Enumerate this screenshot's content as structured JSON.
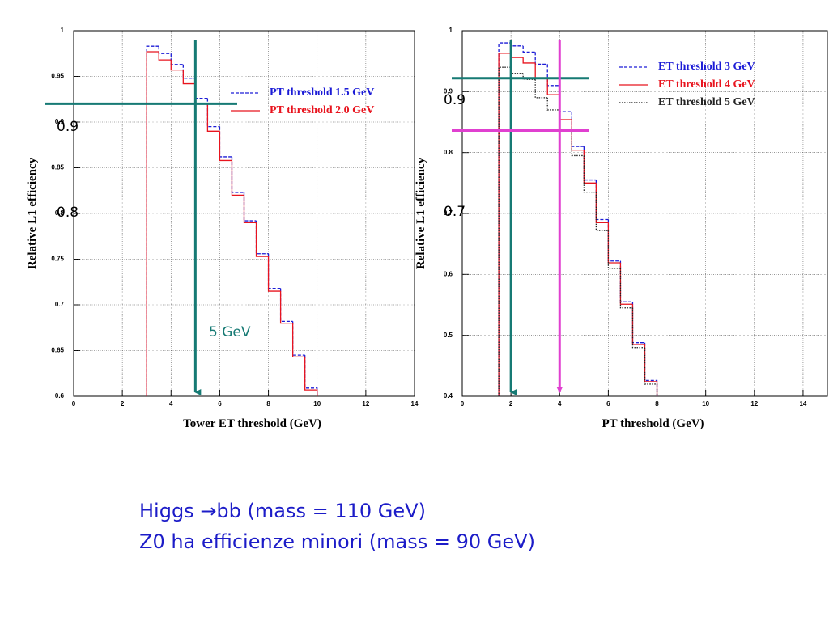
{
  "chart_data": [
    {
      "type": "histogram",
      "x_label": "Tower ET threshold (GeV)",
      "y_label": "Relative L1 efficiency",
      "bins": [
        3,
        3.5,
        4,
        4.5,
        5,
        5.5,
        6,
        6.5,
        7,
        7.5,
        8,
        8.5,
        9,
        9.5,
        10
      ],
      "series": [
        {
          "name": "PT threshold 1.5 GeV",
          "color": "#1c1cd6",
          "style": "dashed",
          "values": [
            0.983,
            0.975,
            0.963,
            0.948,
            0.926,
            0.895,
            0.862,
            0.823,
            0.792,
            0.756,
            0.718,
            0.682,
            0.645,
            0.609
          ]
        },
        {
          "name": "PT threshold 2.0 GeV",
          "color": "#e8141e",
          "style": "solid",
          "values": [
            0.977,
            0.968,
            0.957,
            0.942,
            0.92,
            0.89,
            0.858,
            0.82,
            0.79,
            0.753,
            0.715,
            0.68,
            0.643,
            0.607
          ]
        }
      ],
      "xlim": [
        0,
        14
      ],
      "xticks": [
        0,
        2,
        4,
        6,
        8,
        10,
        12,
        14
      ],
      "ylim": [
        0.6,
        1
      ],
      "yticks": [
        0.6,
        0.65,
        0.7,
        0.75,
        0.8,
        0.85,
        0.9,
        0.95,
        1
      ],
      "grid": true,
      "legend": "upper right",
      "reference_lines": [
        {
          "axis": "y",
          "value": 0.92,
          "color": "#167a74"
        },
        {
          "axis": "x",
          "value": 5,
          "color": "#167a74"
        }
      ],
      "annotations": [
        "0.9",
        "0.8",
        "5 GeV"
      ]
    },
    {
      "type": "histogram",
      "x_label": "PT threshold (GeV)",
      "y_label": "Relative L1 efficiency",
      "bins": [
        1.5,
        2,
        2.5,
        3,
        3.5,
        4,
        4.5,
        5,
        5.5,
        6,
        6.5,
        7,
        7.5,
        8
      ],
      "series": [
        {
          "name": "ET threshold 3 GeV",
          "color": "#1c1cd6",
          "style": "dashed",
          "values": [
            0.98,
            0.975,
            0.965,
            0.945,
            0.91,
            0.867,
            0.81,
            0.755,
            0.69,
            0.622,
            0.555,
            0.488,
            0.426
          ]
        },
        {
          "name": "ET threshold 4 GeV",
          "color": "#e8141e",
          "style": "solid",
          "values": [
            0.963,
            0.956,
            0.947,
            0.922,
            0.895,
            0.854,
            0.804,
            0.75,
            0.685,
            0.619,
            0.551,
            0.485,
            0.424
          ]
        },
        {
          "name": "ET threshold 5 GeV",
          "color": "#222222",
          "style": "dotted",
          "values": [
            0.94,
            0.93,
            0.92,
            0.89,
            0.87,
            0.835,
            0.795,
            0.735,
            0.672,
            0.61,
            0.545,
            0.48,
            0.42
          ]
        }
      ],
      "xlim": [
        0,
        15
      ],
      "xticks": [
        0,
        2,
        4,
        6,
        8,
        10,
        12,
        14
      ],
      "ylim": [
        0.4,
        1
      ],
      "yticks": [
        0.4,
        0.5,
        0.6,
        0.7,
        0.8,
        0.9,
        1
      ],
      "grid": true,
      "legend": "upper right",
      "reference_lines": [
        {
          "axis": "y",
          "value": 0.922,
          "color": "#167a74"
        },
        {
          "axis": "x",
          "value": 2,
          "color": "#167a74"
        },
        {
          "axis": "y",
          "value": 0.836,
          "color": "#e040d0"
        },
        {
          "axis": "x",
          "value": 4,
          "color": "#e040d0"
        }
      ],
      "annotations": [
        "0.9",
        "0.7"
      ]
    }
  ],
  "notes": [
    "Higgs →bb  (mass = 110 GeV)",
    "Z0 ha efficienze minori  (mass = 90 GeV)"
  ]
}
